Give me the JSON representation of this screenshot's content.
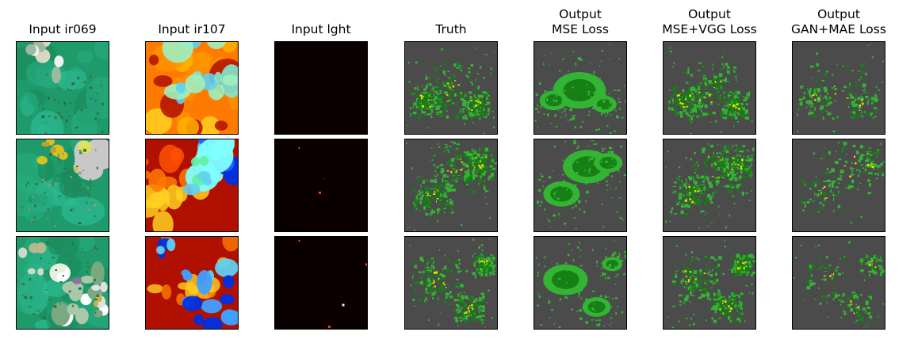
{
  "columns": [
    {
      "key": "ir069",
      "title_lines": [
        "Input ir069"
      ],
      "style": "ir069"
    },
    {
      "key": "ir107",
      "title_lines": [
        "Input ir107"
      ],
      "style": "ir107"
    },
    {
      "key": "lght",
      "title_lines": [
        "Input lght"
      ],
      "style": "lght"
    },
    {
      "key": "truth",
      "title_lines": [
        "Truth"
      ],
      "style": "radar"
    },
    {
      "key": "mse",
      "title_lines": [
        "Output",
        "MSE Loss"
      ],
      "style": "radar_smooth"
    },
    {
      "key": "msevgg",
      "title_lines": [
        "Output",
        "MSE+VGG Loss"
      ],
      "style": "radar"
    },
    {
      "key": "ganmae",
      "title_lines": [
        "Output",
        "GAN+MAE Loss"
      ],
      "style": "radar_sparse"
    }
  ],
  "rows": 3,
  "colors": {
    "ir069_base": "#1f9a6a",
    "ir069_light": "#2fc09a",
    "ir069_cloud": "#d8d8c0",
    "ir069_yellow": "#d8c020",
    "ir107_red": "#b01000",
    "ir107_orange": "#ff7a00",
    "ir107_yellow": "#ffd020",
    "ir107_cyan": "#60d0f0",
    "ir107_blue": "#0030e0",
    "lght_bg": "#0a0000",
    "lght_spot": "#ff4020",
    "radar_bg": "#4b4b4b",
    "radar_light": "#33b533",
    "radar_dark": "#167f16",
    "radar_yellow": "#f0e000"
  }
}
